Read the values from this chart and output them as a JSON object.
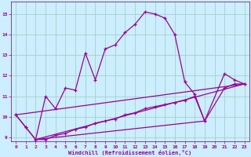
{
  "bg_color": "#cceeff",
  "grid_color": "#99ccbb",
  "line_color": "#990099",
  "spine_color": "#660066",
  "xlim": [
    -0.5,
    23.5
  ],
  "ylim": [
    8.8,
    15.6
  ],
  "yticks": [
    9,
    10,
    11,
    12,
    13,
    14,
    15
  ],
  "xticks": [
    0,
    1,
    2,
    3,
    4,
    5,
    6,
    7,
    8,
    9,
    10,
    11,
    12,
    13,
    14,
    15,
    16,
    17,
    18,
    19,
    20,
    21,
    22,
    23
  ],
  "xlabel": "Windchill (Refroidissement éolien,°C)",
  "series1_x": [
    0,
    1,
    2,
    3,
    4,
    5,
    6,
    7,
    8,
    9,
    10,
    11,
    12,
    13,
    14,
    15,
    16,
    17,
    18,
    19,
    21,
    22,
    23
  ],
  "series1_y": [
    10.1,
    9.5,
    8.9,
    11.0,
    10.4,
    11.4,
    11.3,
    13.1,
    11.8,
    13.3,
    13.5,
    14.1,
    14.5,
    15.1,
    15.0,
    14.8,
    14.0,
    11.7,
    11.1,
    9.8,
    12.1,
    11.8,
    11.6
  ],
  "series2_x": [
    0,
    1,
    2,
    3,
    4,
    5,
    6,
    7,
    8,
    9,
    10,
    11,
    12,
    13,
    14,
    15,
    16,
    17,
    18,
    19,
    21,
    22,
    23
  ],
  "series2_y": [
    10.1,
    9.5,
    8.9,
    8.9,
    9.1,
    9.2,
    9.4,
    9.5,
    9.7,
    9.8,
    9.9,
    10.1,
    10.2,
    10.4,
    10.5,
    10.6,
    10.7,
    10.8,
    11.0,
    9.8,
    11.4,
    11.6,
    11.6
  ],
  "series3_x": [
    0,
    23
  ],
  "series3_y": [
    10.1,
    11.6
  ],
  "series4_x": [
    2,
    23
  ],
  "series4_y": [
    8.9,
    11.6
  ],
  "series5_x": [
    2,
    19
  ],
  "series5_y": [
    8.9,
    9.8
  ]
}
